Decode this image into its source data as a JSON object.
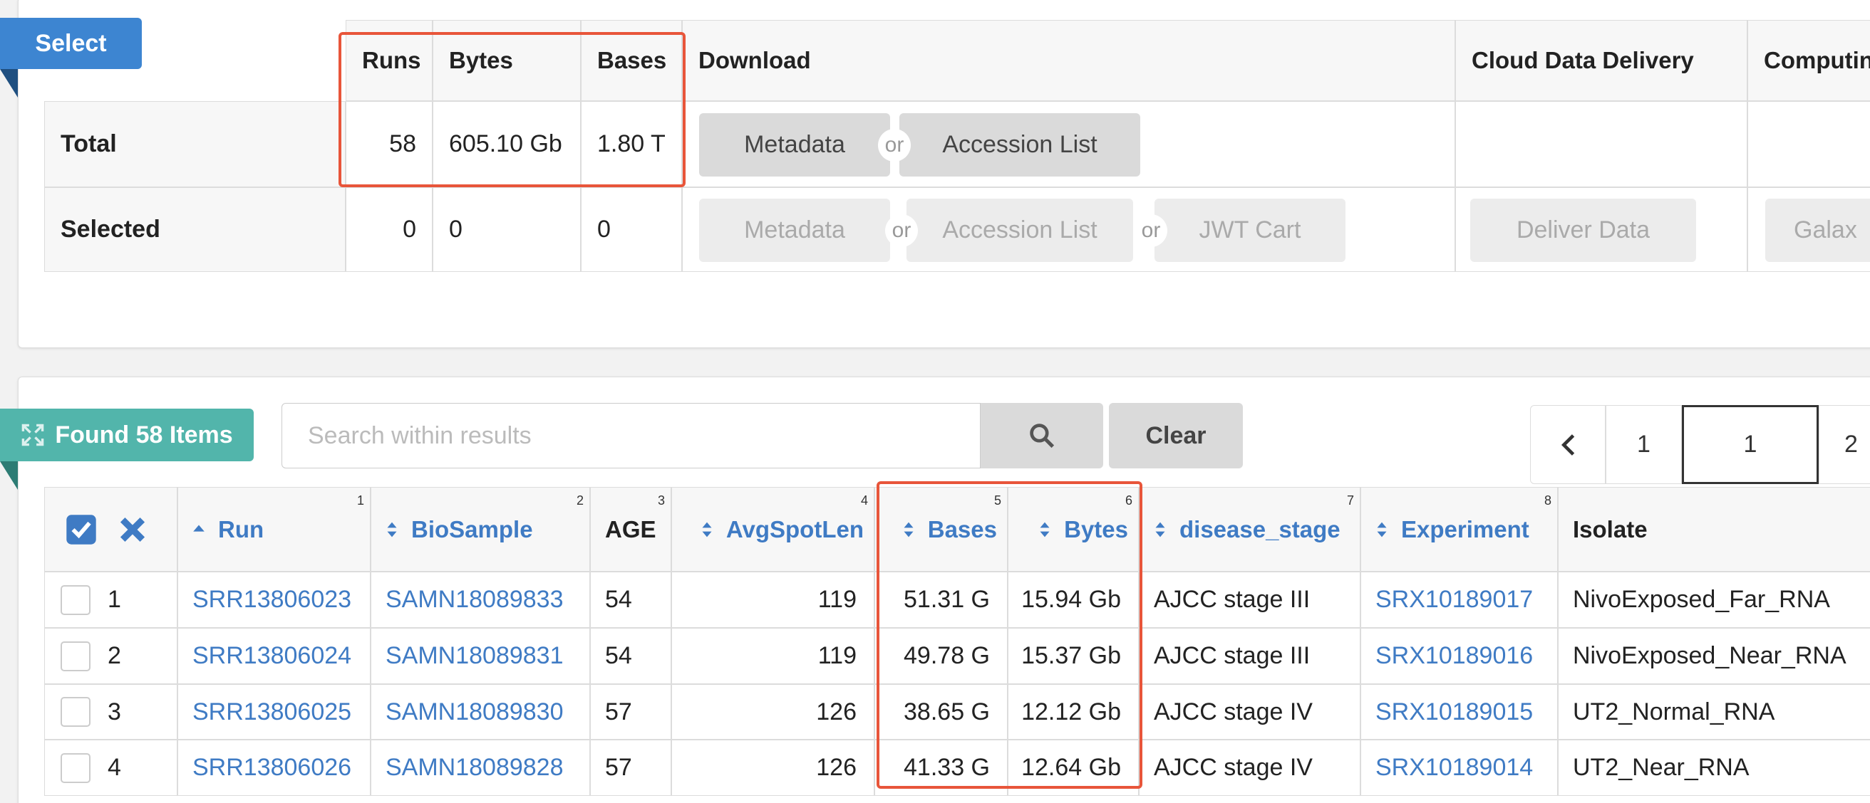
{
  "select_panel": {
    "button": "Select",
    "headers": [
      "Runs",
      "Bytes",
      "Bases",
      "Download",
      "Cloud Data Delivery",
      "Computin"
    ],
    "or": "or",
    "total": {
      "label": "Total",
      "runs": "58",
      "bytes": "605.10 Gb",
      "bases": "1.80 T",
      "buttons": [
        "Metadata",
        "Accession List"
      ]
    },
    "selected": {
      "label": "Selected",
      "runs": "0",
      "bytes": "0",
      "bases": "0",
      "buttons": [
        "Metadata",
        "Accession List",
        "JWT Cart"
      ],
      "deliver": "Deliver Data",
      "computing": "Galax"
    }
  },
  "results": {
    "found": "Found 58 Items",
    "search_placeholder": "Search within results",
    "clear": "Clear",
    "pages": [
      "1",
      "1",
      "2"
    ],
    "columns": [
      {
        "name": "Run",
        "sort_index": "1"
      },
      {
        "name": "BioSample",
        "sort_index": "2"
      },
      {
        "name": "AGE",
        "sort_index": "3"
      },
      {
        "name": "AvgSpotLen",
        "sort_index": "4"
      },
      {
        "name": "Bases",
        "sort_index": "5"
      },
      {
        "name": "Bytes",
        "sort_index": "6"
      },
      {
        "name": "disease_stage",
        "sort_index": "7"
      },
      {
        "name": "Experiment",
        "sort_index": "8"
      },
      {
        "name": "Isolate"
      }
    ],
    "rows": [
      [
        "1",
        "SRR13806023",
        "SAMN18089833",
        "54",
        "119",
        "51.31 G",
        "15.94 Gb",
        "AJCC stage III",
        "SRX10189017",
        "NivoExposed_Far_RNA"
      ],
      [
        "2",
        "SRR13806024",
        "SAMN18089831",
        "54",
        "119",
        "49.78 G",
        "15.37 Gb",
        "AJCC stage III",
        "SRX10189016",
        "NivoExposed_Near_RNA"
      ],
      [
        "3",
        "SRR13806025",
        "SAMN18089830",
        "57",
        "126",
        "38.65 G",
        "12.12 Gb",
        "AJCC stage IV",
        "SRX10189015",
        "UT2_Normal_RNA"
      ],
      [
        "4",
        "SRR13806026",
        "SAMN18089828",
        "57",
        "126",
        "41.33 G",
        "12.64 Gb",
        "AJCC stage IV",
        "SRX10189014",
        "UT2_Near_RNA"
      ]
    ]
  }
}
